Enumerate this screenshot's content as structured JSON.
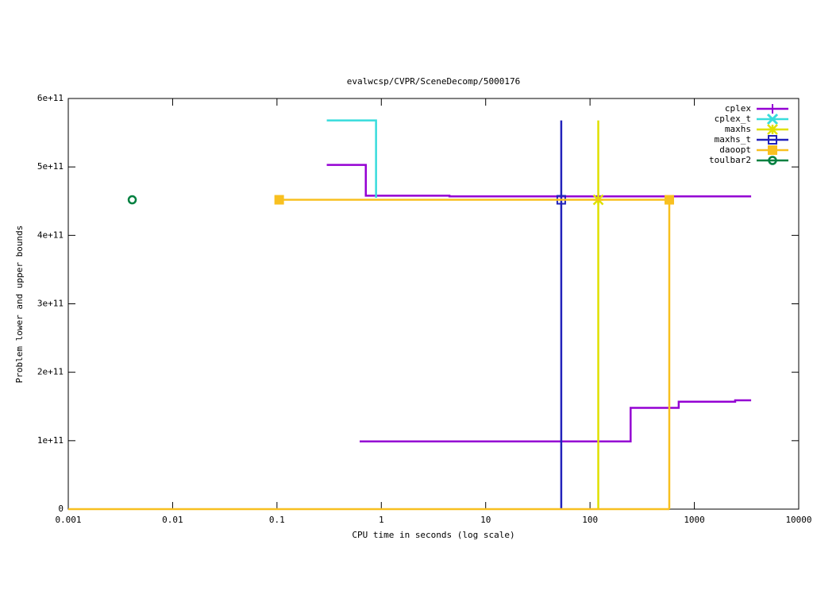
{
  "chart_data": {
    "type": "line",
    "title": "evalwcsp/CVPR/SceneDecomp/5000176",
    "x_label": "CPU time in seconds (log scale)",
    "y_label": "Problem lower and upper bounds",
    "x_log": true,
    "xlim": [
      0.001,
      10000
    ],
    "xticks": [
      0.001,
      0.01,
      0.1,
      1,
      10,
      100,
      1000,
      10000
    ],
    "ylim": [
      0,
      600000000000
    ],
    "yticks": [
      0,
      {
        "value": 100000000000,
        "label": "1e+11"
      },
      {
        "value": 200000000000,
        "label": "2e+11"
      },
      {
        "value": 300000000000,
        "label": "3e+11"
      },
      {
        "value": 400000000000,
        "label": "4e+11"
      },
      {
        "value": 500000000000,
        "label": "5e+11"
      },
      {
        "value": 600000000000,
        "label": "6e+11"
      }
    ],
    "legend": "top-right",
    "series": [
      {
        "name": "cplex",
        "color": "#9400d3",
        "marker": "plus",
        "x": [
          0.3,
          0.71,
          0.71,
          4.5,
          4.5,
          3500,
          null,
          0.62,
          245,
          245,
          708,
          708,
          2460,
          2460,
          3500
        ],
        "values": [
          503000000000,
          503000000000,
          458000000000,
          458000000000,
          457000000000,
          457000000000,
          null,
          99000000000,
          99000000000,
          148000000000,
          148000000000,
          157000000000,
          157000000000,
          159000000000,
          159000000000
        ]
      },
      {
        "name": "cplex_t",
        "color": "#38dcdc",
        "marker": "cross",
        "x": [
          0.3,
          0.89,
          0.89
        ],
        "values": [
          568000000000,
          568000000000,
          455000000000
        ]
      },
      {
        "name": "maxhs",
        "color": "#e0e000",
        "marker": "star",
        "x": [
          120,
          120
        ],
        "values": [
          0,
          568000000000
        ],
        "marker_x": [
          120
        ],
        "marker_values": [
          452000000000
        ]
      },
      {
        "name": "maxhs_t",
        "color": "#2222bb",
        "marker": "open-square",
        "x": [
          53,
          53
        ],
        "values": [
          0,
          568000000000
        ],
        "marker_x": [
          53
        ],
        "marker_values": [
          452000000000
        ]
      },
      {
        "name": "daoopt",
        "color": "#f8c020",
        "marker": "filled-square",
        "x": [
          0.105,
          575,
          575,
          null,
          0.001,
          575
        ],
        "values": [
          452000000000,
          452000000000,
          0,
          null,
          0,
          0
        ],
        "marker_x": [
          0.105,
          575
        ],
        "marker_values": [
          452000000000,
          452000000000
        ]
      },
      {
        "name": "toulbar2",
        "color": "#008040",
        "marker": "circle",
        "marker_x": [
          0.0041
        ],
        "marker_values": [
          452000000000
        ]
      }
    ]
  }
}
